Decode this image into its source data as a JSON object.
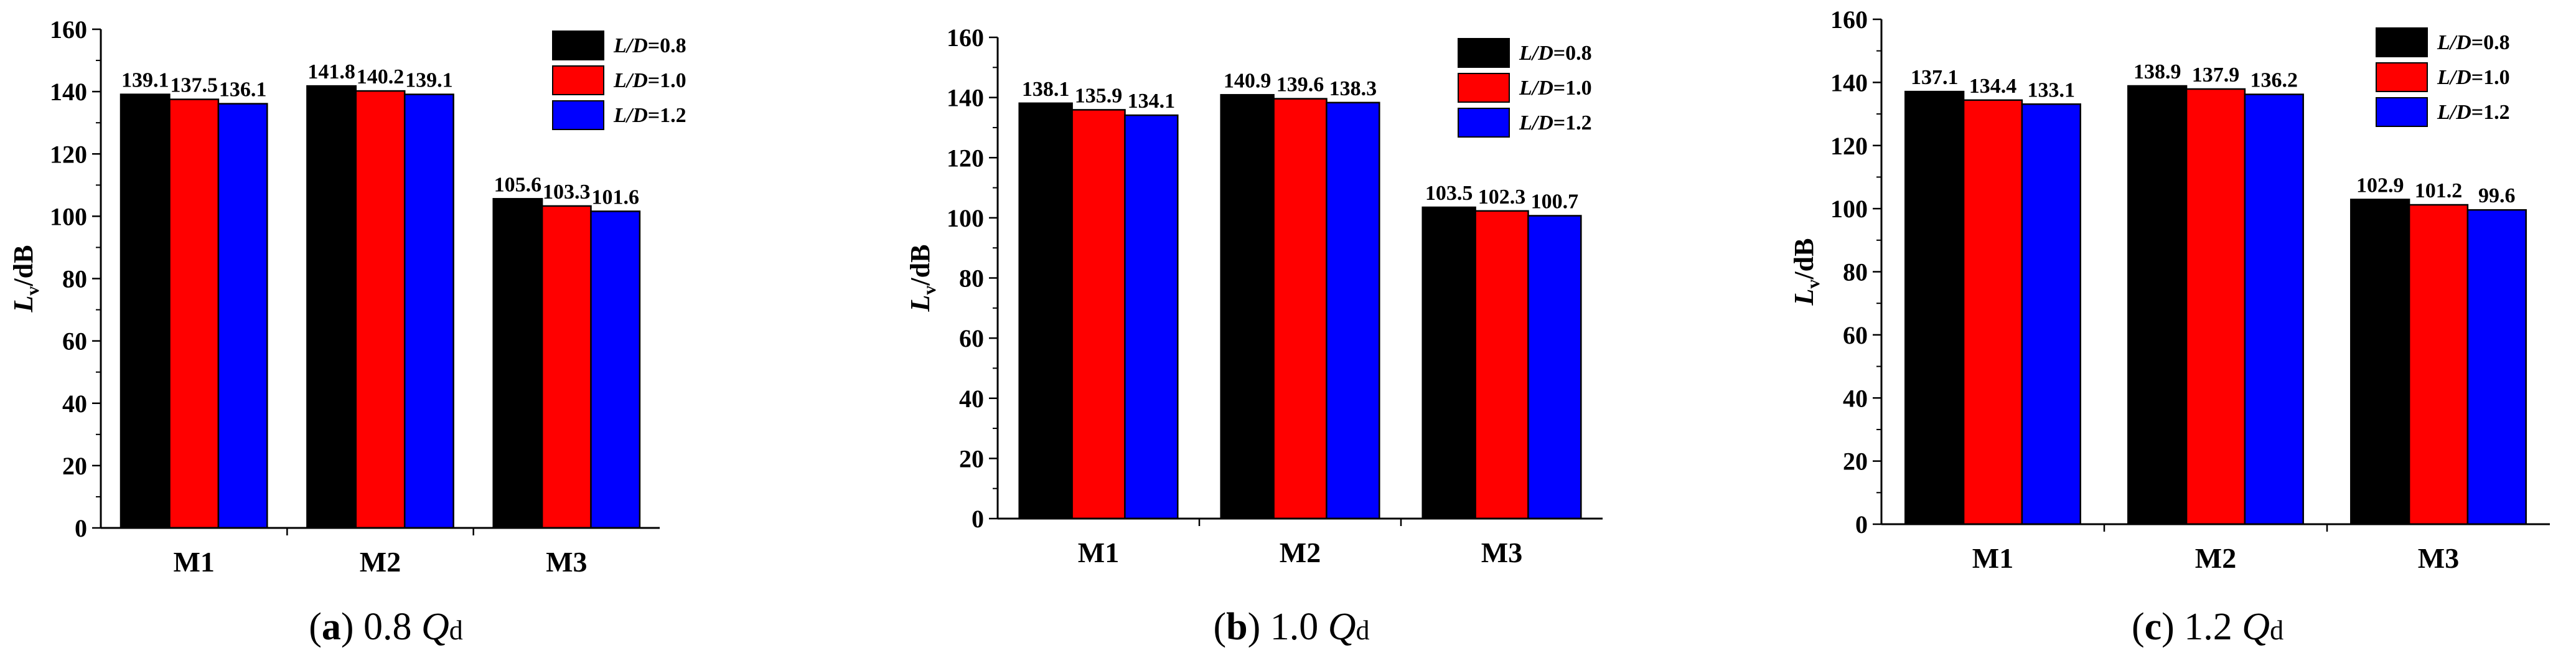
{
  "chart_data": [
    {
      "type": "bar",
      "panel_letter": "a",
      "caption_value": "0.8",
      "caption_q": "Q",
      "caption_sub": "d",
      "categories": [
        "M1",
        "M2",
        "M3"
      ],
      "series": [
        {
          "name_italic": "L/D",
          "name_value": "=0.8",
          "color": "#000000",
          "values": [
            139.1,
            141.8,
            105.6
          ]
        },
        {
          "name_italic": "L/D",
          "name_value": "=1.0",
          "color": "#ff0000",
          "values": [
            137.5,
            140.2,
            103.3
          ]
        },
        {
          "name_italic": "L/D",
          "name_value": "=1.2",
          "color": "#0000ff",
          "values": [
            136.1,
            139.1,
            101.6
          ]
        }
      ],
      "ylabel_main": "L",
      "ylabel_sub": "v",
      "ylabel_unit": "/dB",
      "ylim": [
        0,
        160
      ],
      "yticks": [
        0,
        20,
        40,
        60,
        80,
        100,
        120,
        140,
        160
      ],
      "value_labels": [
        [
          "139.1",
          "137.5",
          "136.1"
        ],
        [
          "141.8",
          "140.2",
          "139.1"
        ],
        [
          "105.6",
          "103.3",
          "101.6"
        ]
      ]
    },
    {
      "type": "bar",
      "panel_letter": "b",
      "caption_value": "1.0",
      "caption_q": "Q",
      "caption_sub": "d",
      "categories": [
        "M1",
        "M2",
        "M3"
      ],
      "series": [
        {
          "name_italic": "L/D",
          "name_value": "=0.8",
          "color": "#000000",
          "values": [
            138.1,
            140.9,
            103.5
          ]
        },
        {
          "name_italic": "L/D",
          "name_value": "=1.0",
          "color": "#ff0000",
          "values": [
            135.9,
            139.6,
            102.3
          ]
        },
        {
          "name_italic": "L/D",
          "name_value": "=1.2",
          "color": "#0000ff",
          "values": [
            134.1,
            138.3,
            100.7
          ]
        }
      ],
      "ylabel_main": "L",
      "ylabel_sub": "v",
      "ylabel_unit": "/dB",
      "ylim": [
        0,
        160
      ],
      "yticks": [
        0,
        20,
        40,
        60,
        80,
        100,
        120,
        140,
        160
      ],
      "value_labels": [
        [
          "138.1",
          "135.9",
          "134.1"
        ],
        [
          "140.9",
          "139.6",
          "138.3"
        ],
        [
          "103.5",
          "102.3",
          "100.7"
        ]
      ]
    },
    {
      "type": "bar",
      "panel_letter": "c",
      "caption_value": "1.2",
      "caption_q": "Q",
      "caption_sub": "d",
      "categories": [
        "M1",
        "M2",
        "M3"
      ],
      "series": [
        {
          "name_italic": "L/D",
          "name_value": "=0.8",
          "color": "#000000",
          "values": [
            137.1,
            138.9,
            102.9
          ]
        },
        {
          "name_italic": "L/D",
          "name_value": "=1.0",
          "color": "#ff0000",
          "values": [
            134.4,
            137.9,
            101.2
          ]
        },
        {
          "name_italic": "L/D",
          "name_value": "=1.2",
          "color": "#0000ff",
          "values": [
            133.1,
            136.2,
            99.6
          ]
        }
      ],
      "ylabel_main": "L",
      "ylabel_sub": "v",
      "ylabel_unit": "/dB",
      "ylim": [
        0,
        160
      ],
      "yticks": [
        0,
        20,
        40,
        60,
        80,
        100,
        120,
        140,
        160
      ],
      "value_labels": [
        [
          "137.1",
          "134.4",
          "133.1"
        ],
        [
          "138.9",
          "137.9",
          "136.2"
        ],
        [
          "102.9",
          "101.2",
          "99.6"
        ]
      ]
    }
  ]
}
